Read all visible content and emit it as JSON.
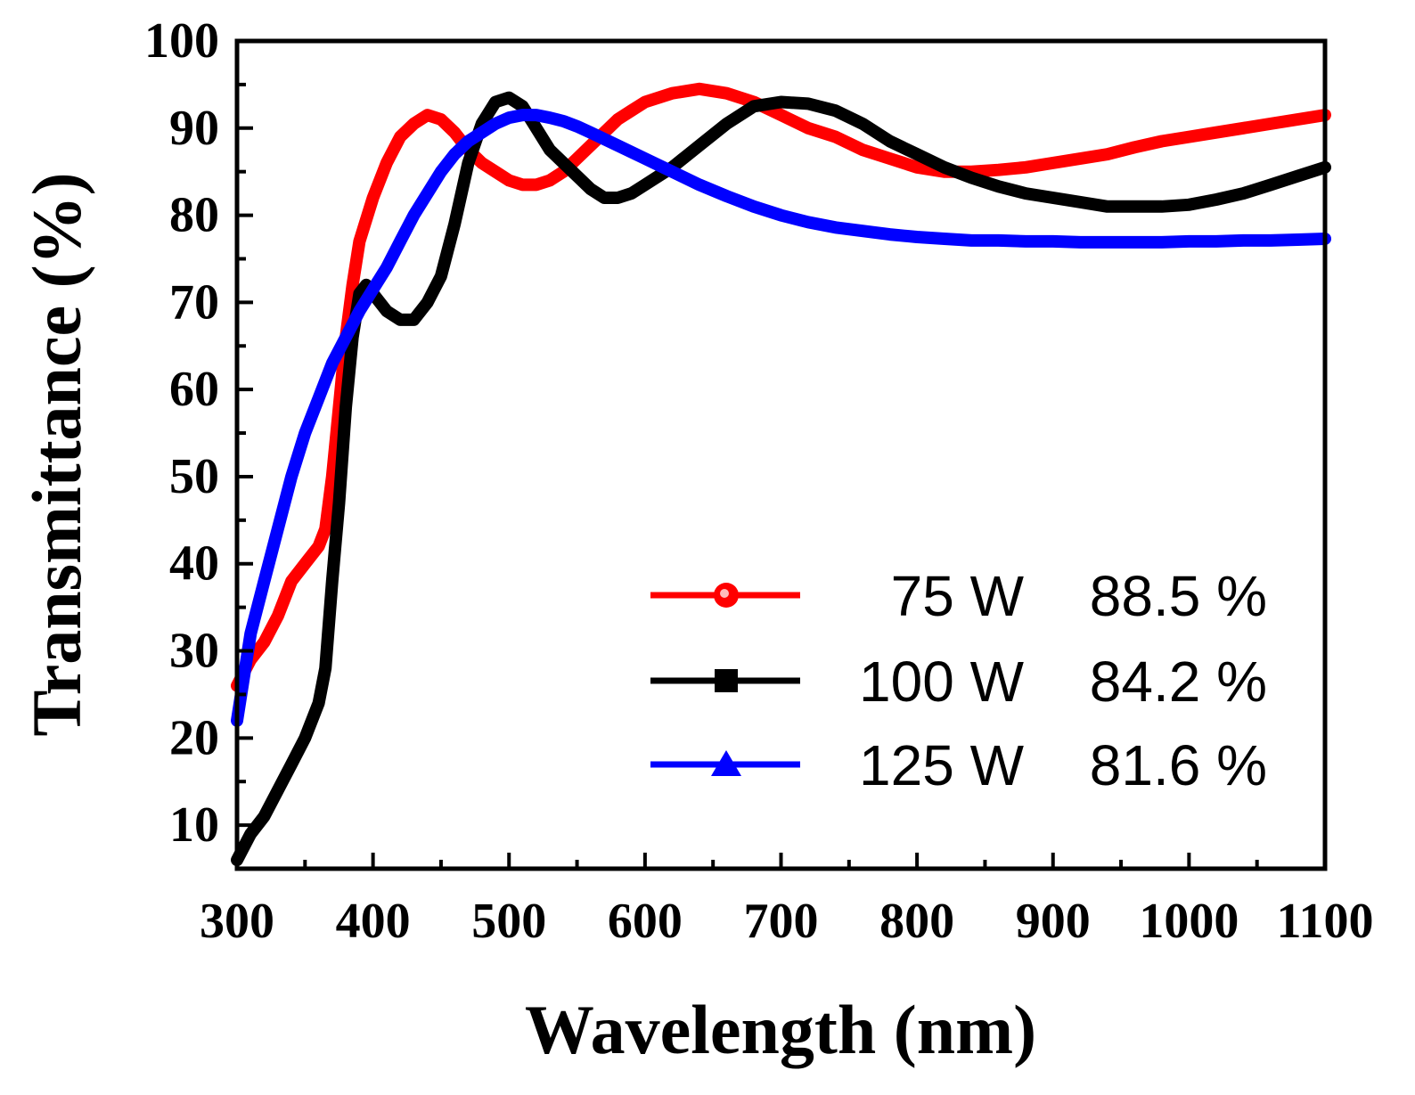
{
  "chart_data": {
    "type": "line",
    "title": "",
    "xlabel": "Wavelength (nm)",
    "ylabel": "Transmittance (%)",
    "xlim": [
      300,
      1100
    ],
    "ylim": [
      5,
      100
    ],
    "xticks": [
      300,
      400,
      500,
      600,
      700,
      800,
      900,
      1000,
      1100
    ],
    "yticks": [
      10,
      20,
      30,
      40,
      50,
      60,
      70,
      80,
      90,
      100
    ],
    "grid": false,
    "legend_position": "bottom-right",
    "series": [
      {
        "name": "75 W",
        "legend_value": "88.5 %",
        "color": "#ff0000",
        "marker": "circle",
        "x": [
          300,
          310,
          320,
          330,
          340,
          350,
          360,
          365,
          370,
          375,
          380,
          385,
          390,
          400,
          410,
          420,
          430,
          440,
          450,
          460,
          470,
          480,
          490,
          500,
          510,
          520,
          530,
          540,
          550,
          560,
          570,
          580,
          590,
          600,
          620,
          640,
          660,
          680,
          700,
          720,
          740,
          760,
          780,
          800,
          820,
          840,
          860,
          880,
          900,
          920,
          940,
          960,
          980,
          1000,
          1020,
          1040,
          1060,
          1080,
          1100
        ],
        "y": [
          26,
          29,
          31,
          34,
          38,
          40,
          42,
          44,
          50,
          58,
          66,
          72,
          77,
          82,
          86,
          89,
          90.5,
          91.5,
          91,
          89.5,
          87.5,
          86,
          85,
          84,
          83.5,
          83.5,
          84,
          85,
          86.5,
          88,
          89.5,
          91,
          92,
          93,
          94,
          94.5,
          94,
          93,
          91.5,
          90,
          89,
          87.5,
          86.5,
          85.5,
          85,
          85,
          85.2,
          85.5,
          86,
          86.5,
          87,
          87.8,
          88.5,
          89,
          89.5,
          90,
          90.5,
          91,
          91.5
        ]
      },
      {
        "name": "100 W",
        "legend_value": "84.2 %",
        "color": "#000000",
        "marker": "square",
        "x": [
          300,
          310,
          320,
          330,
          340,
          350,
          360,
          365,
          370,
          375,
          380,
          385,
          390,
          395,
          400,
          410,
          420,
          430,
          440,
          450,
          460,
          470,
          480,
          490,
          500,
          510,
          520,
          530,
          540,
          550,
          560,
          570,
          580,
          590,
          600,
          620,
          640,
          660,
          680,
          700,
          720,
          740,
          760,
          780,
          800,
          820,
          840,
          860,
          880,
          900,
          920,
          940,
          960,
          980,
          1000,
          1020,
          1040,
          1060,
          1080,
          1100
        ],
        "y": [
          6,
          9,
          11,
          14,
          17,
          20,
          24,
          28,
          38,
          47,
          58,
          66,
          71,
          72,
          71,
          69,
          68,
          68,
          70,
          73,
          79,
          86,
          90.5,
          93,
          93.5,
          92.5,
          90,
          87.5,
          86,
          84.5,
          83,
          82,
          82,
          82.5,
          83.5,
          85.5,
          88,
          90.5,
          92.5,
          93,
          92.8,
          92,
          90.5,
          88.5,
          87,
          85.5,
          84.3,
          83.3,
          82.5,
          82,
          81.5,
          81,
          81,
          81,
          81.2,
          81.8,
          82.5,
          83.5,
          84.5,
          85.5
        ]
      },
      {
        "name": "125 W",
        "legend_value": "81.6 %",
        "color": "#0000ff",
        "marker": "triangle",
        "x": [
          300,
          310,
          320,
          330,
          340,
          350,
          360,
          370,
          380,
          390,
          400,
          410,
          420,
          430,
          440,
          450,
          460,
          470,
          480,
          490,
          500,
          510,
          520,
          530,
          540,
          550,
          560,
          580,
          600,
          620,
          640,
          660,
          680,
          700,
          720,
          740,
          760,
          780,
          800,
          820,
          840,
          860,
          880,
          900,
          920,
          940,
          960,
          980,
          1000,
          1020,
          1040,
          1060,
          1080,
          1100
        ],
        "y": [
          22,
          32,
          38,
          44,
          50,
          55,
          59,
          63,
          66,
          69,
          71.5,
          74,
          77,
          80,
          82.5,
          85,
          87,
          88.5,
          89.5,
          90.5,
          91.2,
          91.5,
          91.5,
          91.2,
          90.8,
          90.2,
          89.5,
          88,
          86.5,
          85,
          83.5,
          82.2,
          81,
          80,
          79.2,
          78.6,
          78.2,
          77.8,
          77.5,
          77.3,
          77.1,
          77.1,
          77,
          77,
          76.9,
          76.9,
          76.9,
          76.9,
          77,
          77,
          77.1,
          77.1,
          77.2,
          77.3
        ]
      }
    ]
  }
}
